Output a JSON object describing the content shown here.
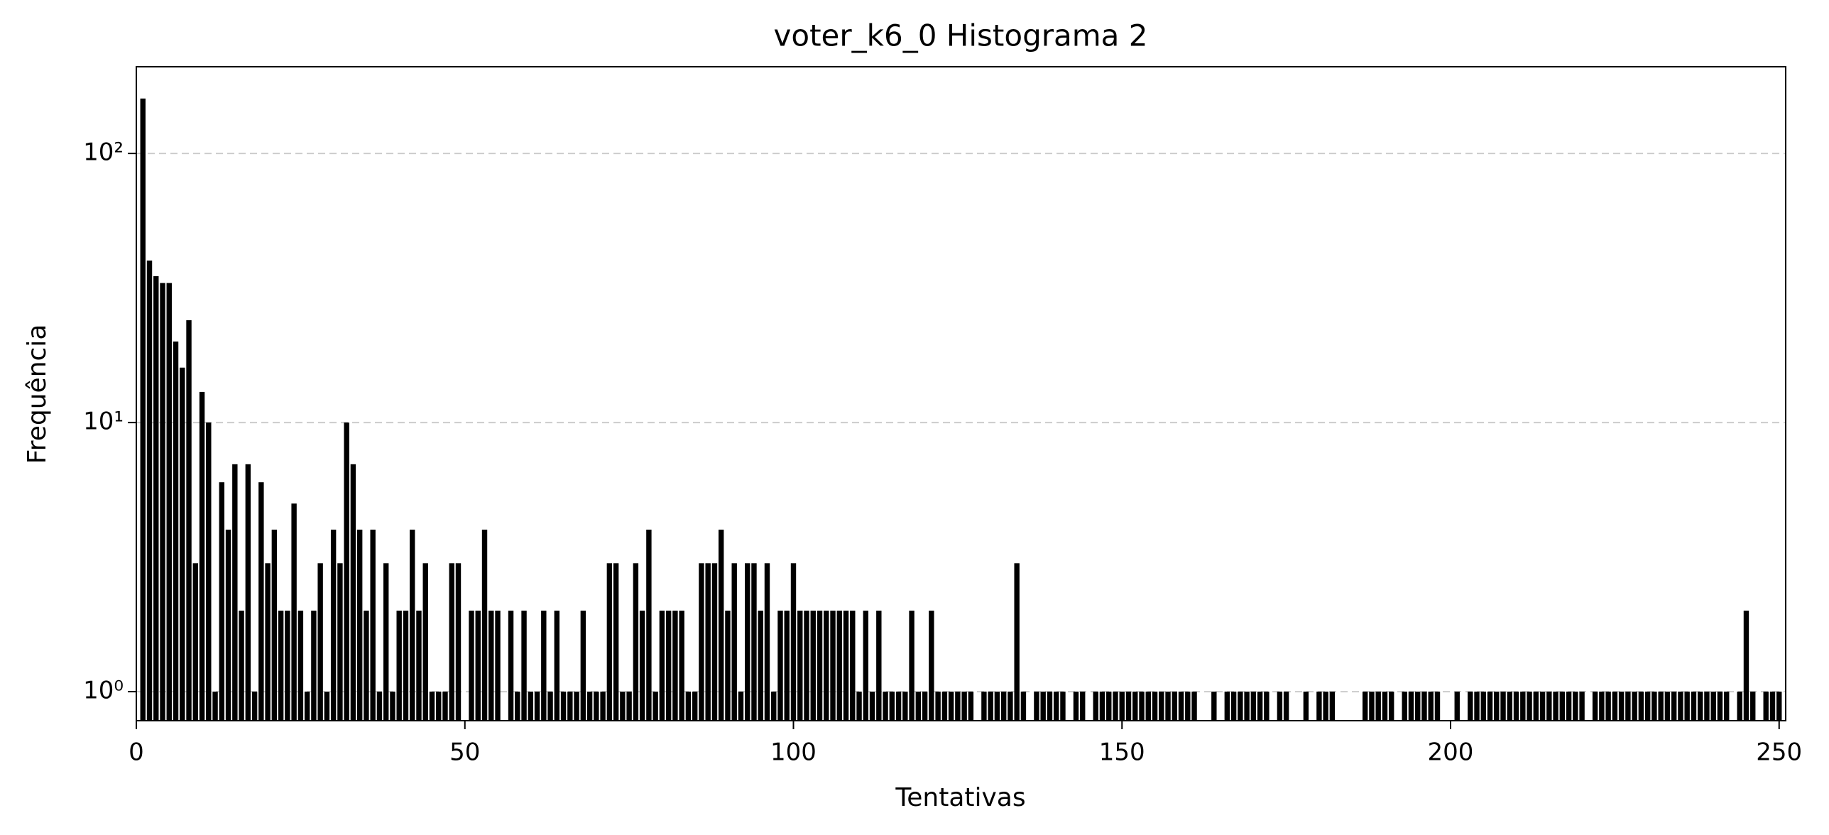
{
  "chart_data": {
    "type": "bar",
    "title": "voter_k6_0 Histograma 2",
    "xlabel": "Tentativas",
    "ylabel": "Frequência",
    "x": [
      1,
      2,
      3,
      4,
      5,
      6,
      7,
      8,
      9,
      10,
      11,
      12,
      13,
      14,
      15,
      16,
      17,
      18,
      19,
      20,
      21,
      22,
      23,
      24,
      25,
      26,
      27,
      28,
      29,
      30,
      31,
      32,
      33,
      34,
      35,
      36,
      37,
      38,
      39,
      40,
      41,
      42,
      43,
      44,
      45,
      46,
      47,
      48,
      49,
      51,
      52,
      53,
      54,
      55,
      57,
      58,
      59,
      60,
      61,
      62,
      63,
      64,
      65,
      66,
      67,
      68,
      69,
      70,
      71,
      72,
      73,
      74,
      75,
      76,
      77,
      78,
      79,
      80,
      81,
      82,
      83,
      84,
      85,
      86,
      87,
      88,
      89,
      90,
      91,
      92,
      93,
      94,
      95,
      96,
      97,
      98,
      99,
      100,
      101,
      102,
      103,
      104,
      105,
      106,
      107,
      108,
      109,
      110,
      111,
      112,
      113,
      114,
      115,
      116,
      117,
      118,
      119,
      120,
      121,
      122,
      123,
      124,
      125,
      126,
      127,
      129,
      130,
      131,
      132,
      133,
      134,
      135,
      137,
      138,
      139,
      140,
      141,
      143,
      144,
      146,
      147,
      148,
      149,
      150,
      151,
      152,
      153,
      154,
      155,
      156,
      157,
      158,
      159,
      160,
      161,
      164,
      166,
      167,
      168,
      169,
      170,
      171,
      172,
      174,
      175,
      178,
      180,
      181,
      182,
      187,
      188,
      189,
      190,
      191,
      193,
      194,
      195,
      196,
      197,
      198,
      201,
      203,
      204,
      205,
      206,
      207,
      208,
      209,
      210,
      211,
      212,
      213,
      214,
      215,
      216,
      217,
      218,
      219,
      220,
      222,
      223,
      224,
      225,
      226,
      227,
      228,
      229,
      230,
      231,
      232,
      233,
      234,
      235,
      236,
      237,
      238,
      239,
      240,
      241,
      242,
      244,
      245,
      246,
      248,
      249,
      250
    ],
    "values": [
      160,
      40,
      35,
      33,
      33,
      20,
      16,
      24,
      3,
      13,
      10,
      1,
      6,
      4,
      7,
      2,
      7,
      1,
      6,
      3,
      4,
      2,
      2,
      5,
      2,
      1,
      2,
      3,
      1,
      4,
      3,
      10,
      7,
      4,
      2,
      4,
      1,
      3,
      1,
      2,
      2,
      4,
      2,
      3,
      1,
      1,
      1,
      3,
      3,
      2,
      2,
      4,
      2,
      2,
      2,
      1,
      2,
      1,
      1,
      2,
      1,
      2,
      1,
      1,
      1,
      2,
      1,
      1,
      1,
      3,
      3,
      1,
      1,
      3,
      2,
      4,
      1,
      2,
      2,
      2,
      2,
      1,
      1,
      3,
      3,
      3,
      4,
      2,
      3,
      1,
      3,
      3,
      2,
      3,
      1,
      2,
      2,
      3,
      2,
      2,
      2,
      2,
      2,
      2,
      2,
      2,
      2,
      1,
      2,
      1,
      2,
      1,
      1,
      1,
      1,
      2,
      1,
      1,
      2,
      1,
      1,
      1,
      1,
      1,
      1,
      1,
      1,
      1,
      1,
      1,
      3,
      1,
      1,
      1,
      1,
      1,
      1,
      1,
      1,
      1,
      1,
      1,
      1,
      1,
      1,
      1,
      1,
      1,
      1,
      1,
      1,
      1,
      1,
      1,
      1,
      1,
      1,
      1,
      1,
      1,
      1,
      1,
      1,
      1,
      1,
      1,
      1,
      1,
      1,
      1,
      1,
      1,
      1,
      1,
      1,
      1,
      1,
      1,
      1,
      1,
      1,
      1,
      1,
      1,
      1,
      1,
      1,
      1,
      1,
      1,
      1,
      1,
      1,
      1,
      1,
      1,
      1,
      1,
      1,
      1,
      1,
      1,
      1,
      1,
      1,
      1,
      1,
      1,
      1,
      1,
      1,
      1,
      1,
      1,
      1,
      1,
      1,
      1,
      1,
      1,
      1,
      2,
      1,
      1,
      1,
      1
    ],
    "color": "#000000",
    "xlim": [
      0,
      251
    ],
    "xticks": [
      0,
      50,
      100,
      150,
      200,
      250
    ],
    "ylim": [
      0.78,
      210
    ],
    "log_y": true,
    "yticks": [
      {
        "value": 1,
        "label": "10⁰"
      },
      {
        "value": 10,
        "label": "10¹"
      },
      {
        "value": 100,
        "label": "10²"
      }
    ],
    "grid": true
  }
}
